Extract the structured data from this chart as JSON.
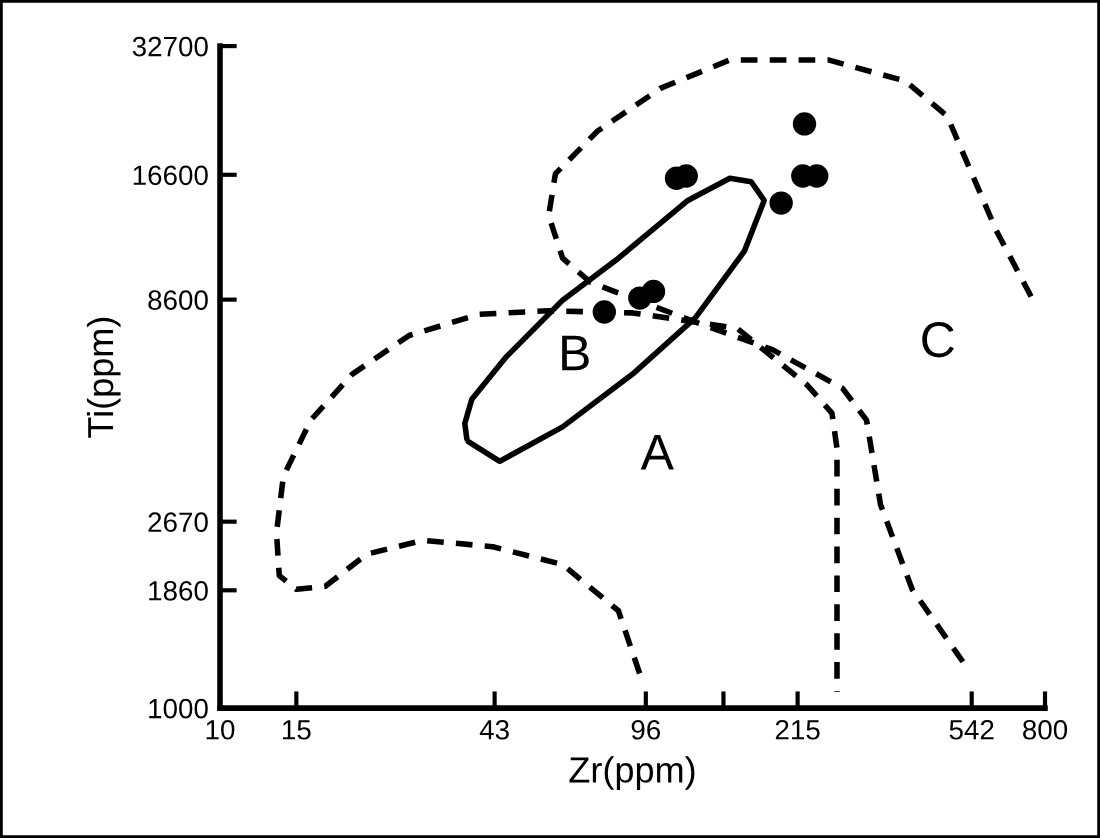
{
  "chart_data": {
    "type": "scatter",
    "xlabel": "Zr(ppm)",
    "ylabel": "Ti(ppm)",
    "log": "xy",
    "xlim": [
      10,
      800
    ],
    "ylim": [
      1000,
      32700
    ],
    "xticks": [
      10,
      15,
      43,
      96,
      {
        "value": 145,
        "label": null
      },
      215,
      542,
      800
    ],
    "yticks": [
      1000,
      1860,
      2670,
      8600,
      16600,
      32700
    ],
    "grid": false,
    "legend": false,
    "series": [
      {
        "type": "line",
        "line_style": "dashed",
        "marker": "none",
        "color": "#000000",
        "x": [
          92.9,
          83,
          61.7,
          42.6,
          29.4,
          21.8,
          17.5,
          15.0,
          13.7,
          13.5,
          14.0,
          16.2,
          20.2,
          27.3,
          39.5,
          57.3,
          89.5,
          156,
          226,
          258,
          265,
          265
        ],
        "values": [
          1200,
          1670,
          2130,
          2340,
          2420,
          2250,
          1900,
          1870,
          2010,
          2520,
          3390,
          4560,
          5810,
          7120,
          7960,
          8110,
          8020,
          7390,
          5490,
          4730,
          3930,
          1090
        ]
      },
      {
        "type": "line",
        "line_style": "dashed",
        "marker": "none",
        "color": "#000000",
        "x": [
          743,
          617,
          476,
          381,
          253,
          150,
          104,
          74.3,
          59.4,
          57.3,
          61.7,
          71.6,
          96.4,
          130,
          188,
          273,
          310,
          334,
          395,
          522
        ],
        "values": [
          8740,
          12400,
          22600,
          27200,
          30400,
          30400,
          26200,
          20900,
          16700,
          13400,
          10700,
          9420,
          8420,
          7530,
          6610,
          5390,
          4560,
          2920,
          1870,
          1260
        ]
      },
      {
        "type": "line",
        "line_style": "solid",
        "marker": "none",
        "color": "#000000",
        "x": [
          37.4,
          44.2,
          61.7,
          89.5,
          125,
          162,
          180,
          168,
          150,
          120,
          83,
          61.7,
          45.8,
          38.1,
          36.7,
          37.1
        ],
        "values": [
          4070,
          3670,
          4400,
          5810,
          7820,
          11100,
          14500,
          16000,
          16300,
          14500,
          10700,
          8570,
          6370,
          5090,
          4480,
          4130
        ]
      },
      {
        "marker": "circle",
        "color": "#000000",
        "x": [
          77,
          93,
          100,
          113,
          119,
          197,
          223,
          221,
          238
        ],
        "values": [
          8060,
          8670,
          8980,
          16300,
          16500,
          14300,
          21700,
          16500,
          16500
        ]
      }
    ],
    "annotations": [
      "A",
      "B",
      "C"
    ]
  }
}
